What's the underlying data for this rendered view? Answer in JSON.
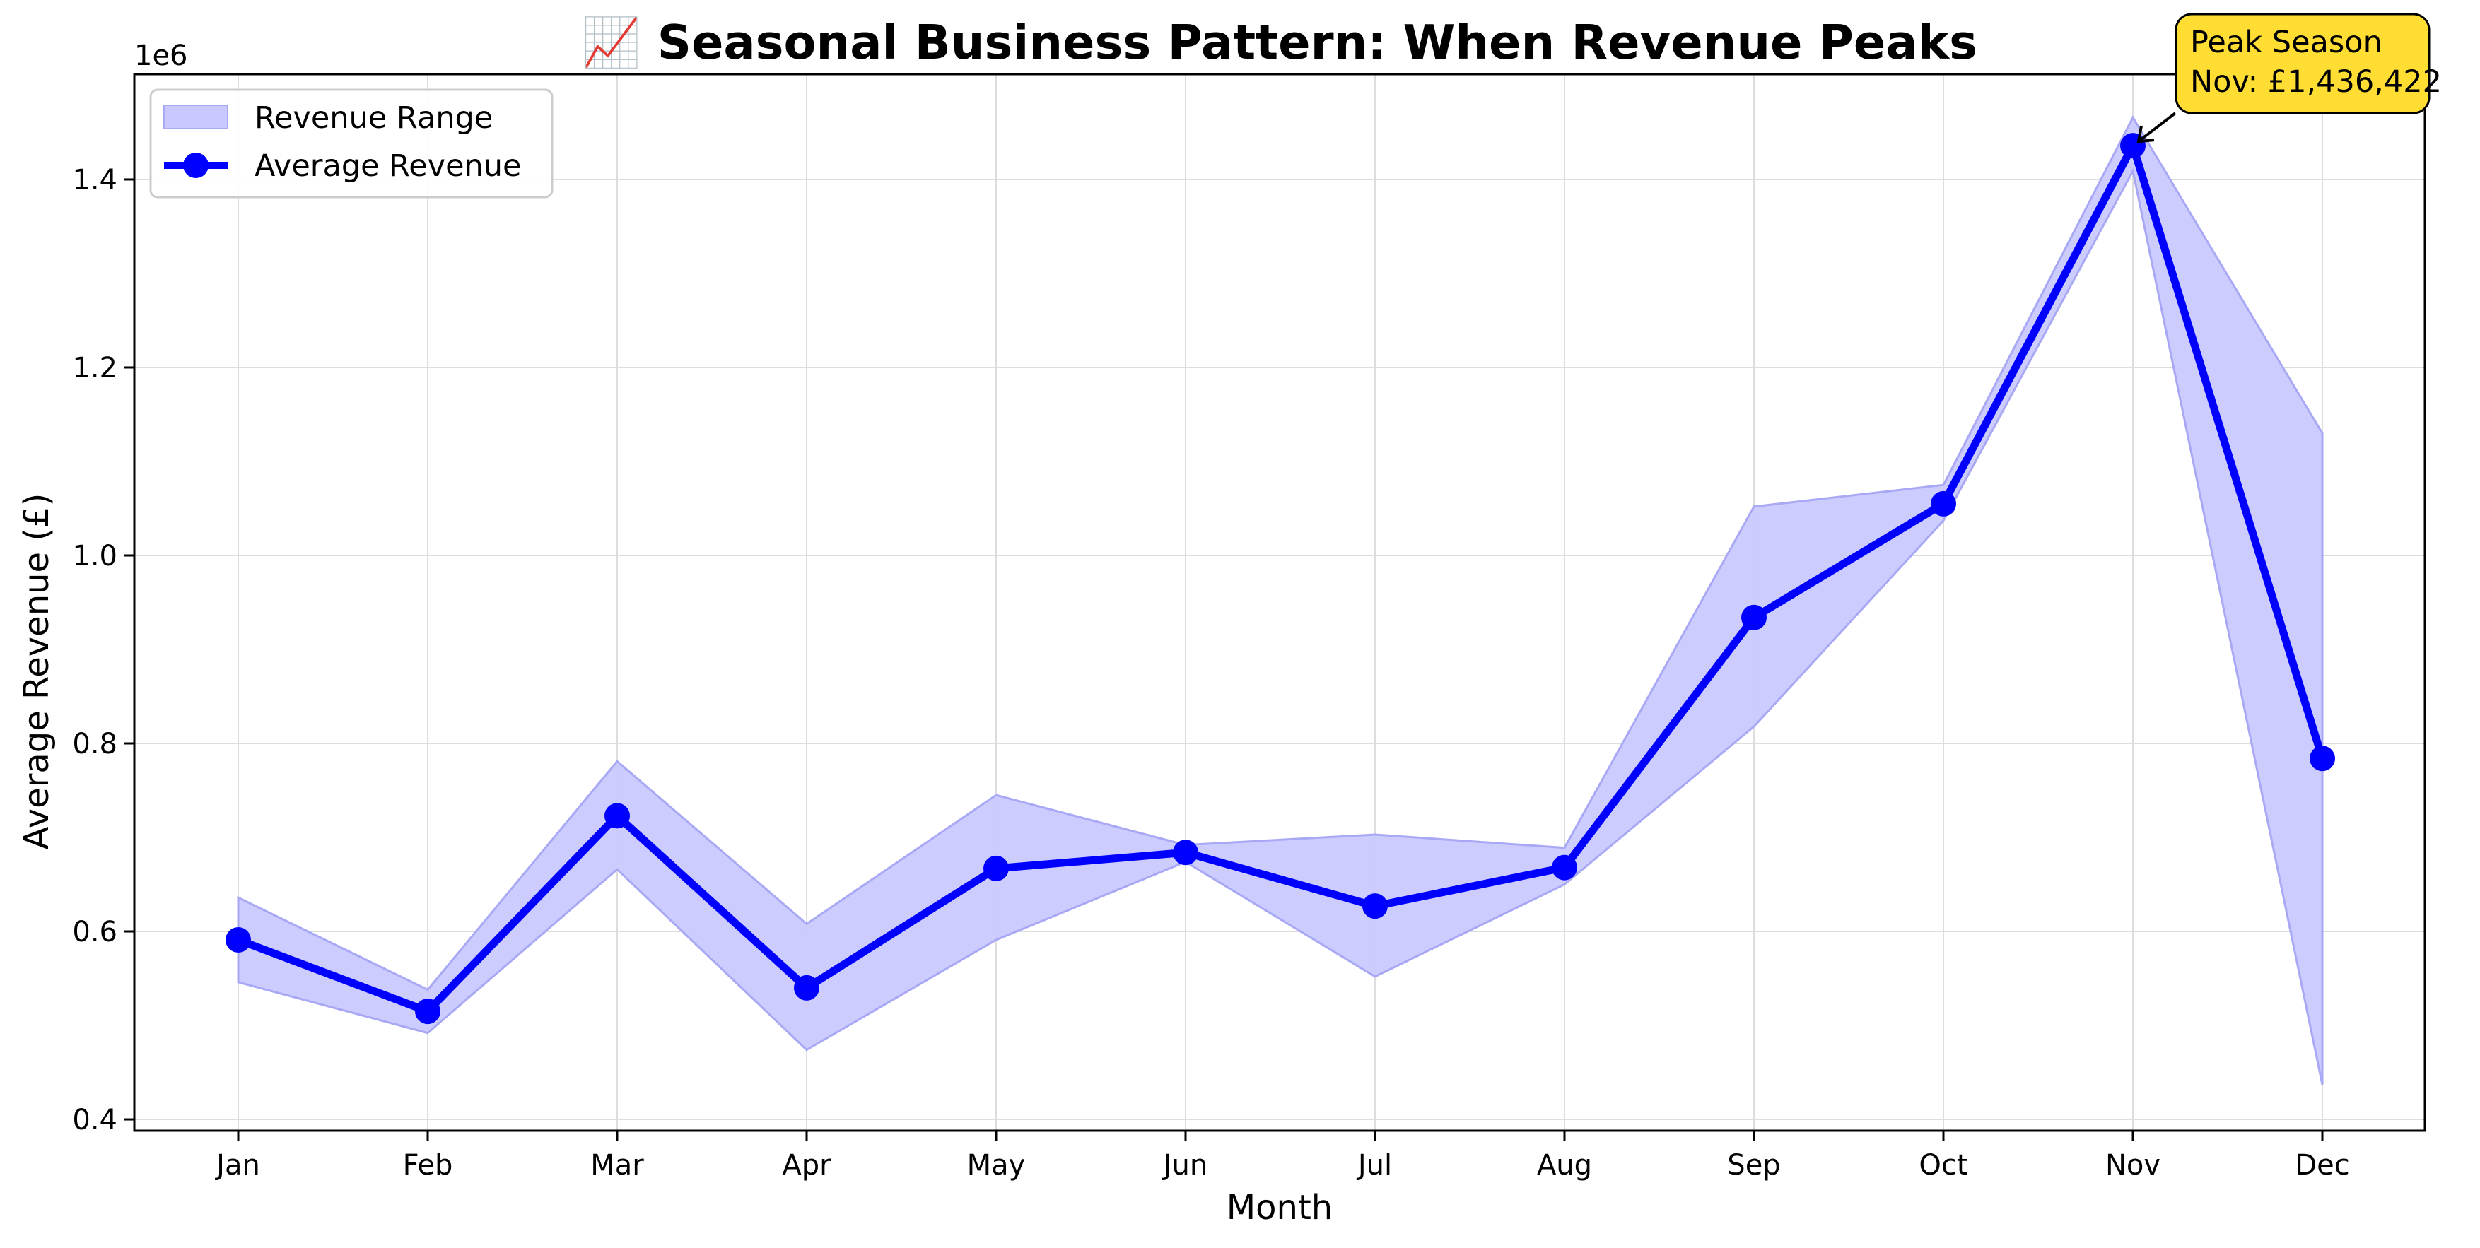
{
  "chart_data": {
    "type": "line",
    "title": "📈 Seasonal Business Pattern: When Revenue Peaks",
    "xlabel": "Month",
    "ylabel": "Average Revenue (£)",
    "y_offset_label": "1e6",
    "y_scale_factor": 1000000,
    "categories": [
      "Jan",
      "Feb",
      "Mar",
      "Apr",
      "May",
      "Jun",
      "Jul",
      "Aug",
      "Sep",
      "Oct",
      "Nov",
      "Dec"
    ],
    "ylim": [
      0.388,
      1.512
    ],
    "yticks": [
      0.4,
      0.6,
      0.8,
      1.0,
      1.2,
      1.4
    ],
    "ytick_labels": [
      "0.4",
      "0.6",
      "0.8",
      "1.0",
      "1.2",
      "1.4"
    ],
    "grid": true,
    "legend_position": "top-left",
    "series": [
      {
        "name": "Average Revenue",
        "color": "#0000ff",
        "values": [
          0.591,
          0.515,
          0.723,
          0.54,
          0.667,
          0.684,
          0.627,
          0.668,
          0.934,
          1.055,
          1.436,
          0.784
        ]
      }
    ],
    "range_band": {
      "name": "Revenue Range",
      "color": "#c9c9ff",
      "edge_color": "#a8a8f5",
      "upper": [
        0.636,
        0.538,
        0.781,
        0.608,
        0.745,
        0.692,
        0.703,
        0.689,
        1.052,
        1.075,
        1.466,
        1.13
      ],
      "lower": [
        0.546,
        0.492,
        0.666,
        0.474,
        0.591,
        0.674,
        0.552,
        0.65,
        0.818,
        1.037,
        1.409,
        0.437
      ]
    },
    "annotation": {
      "line1": "Peak Season",
      "line2": "Nov: £1,436,422",
      "target_category": "Nov",
      "target_value": 1.436,
      "box_color": "#ffdd33"
    }
  }
}
